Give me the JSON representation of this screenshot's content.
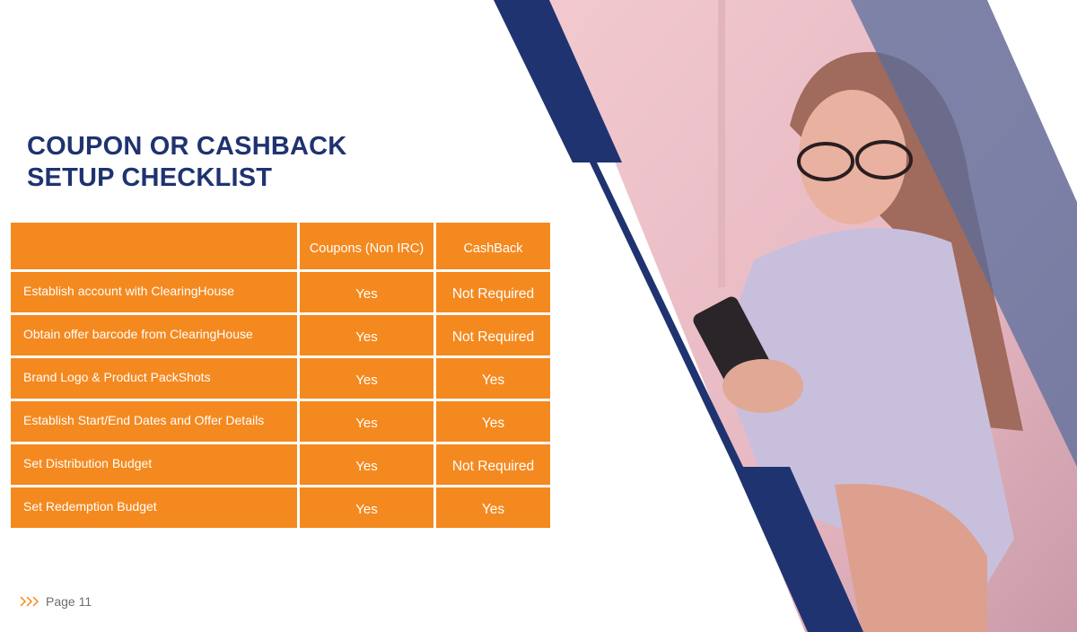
{
  "title": {
    "line1": "COUPON OR CASHBACK",
    "line2": "SETUP CHECKLIST"
  },
  "table": {
    "headers": [
      "",
      "Coupons (Non IRC)",
      "CashBack"
    ],
    "rows": [
      {
        "label": "Establish account with ClearingHouse",
        "coupons": "Yes",
        "cashback": "Not Required"
      },
      {
        "label": "Obtain offer barcode from ClearingHouse",
        "coupons": "Yes",
        "cashback": "Not Required"
      },
      {
        "label": "Brand Logo & Product PackShots",
        "coupons": "Yes",
        "cashback": "Yes"
      },
      {
        "label": "Establish Start/End Dates and Offer Details",
        "coupons": "Yes",
        "cashback": "Yes"
      },
      {
        "label": "Set Distribution Budget",
        "coupons": "Yes",
        "cashback": "Not Required"
      },
      {
        "label": "Set Redemption Budget",
        "coupons": "Yes",
        "cashback": "Yes"
      }
    ]
  },
  "footer": {
    "icon": "triple-chevron-right-icon",
    "page_label": "Page 11"
  },
  "colors": {
    "accent": "#f4891f",
    "navy": "#1f3370",
    "photo_tint": "#f0c4cc"
  }
}
